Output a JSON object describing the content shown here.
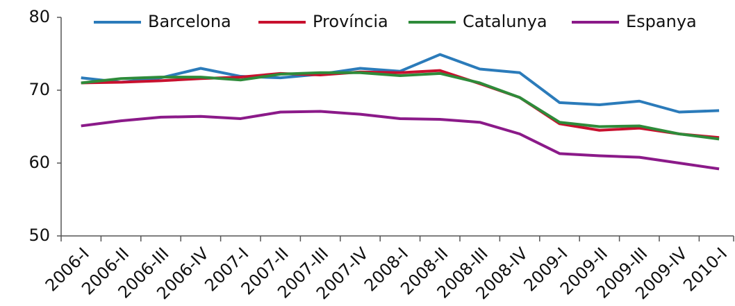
{
  "chart_data": {
    "type": "line",
    "categories": [
      "2006-I",
      "2006-II",
      "2006-III",
      "2006-IV",
      "2007-I",
      "2007-II",
      "2007-III",
      "2007-IV",
      "2008-I",
      "2008-II",
      "2008-III",
      "2008-IV",
      "2009-I",
      "2009-II",
      "2009-III",
      "2009-IV",
      "2010-I"
    ],
    "series": [
      {
        "name": "Barcelona",
        "color": "#2b7bba",
        "values": [
          71.7,
          71.1,
          71.7,
          73.0,
          71.9,
          71.7,
          72.2,
          73.0,
          72.6,
          74.9,
          72.9,
          72.4,
          68.3,
          68.0,
          68.5,
          67.0,
          67.2
        ]
      },
      {
        "name": "Província",
        "color": "#c8102e",
        "values": [
          71.0,
          71.1,
          71.3,
          71.6,
          71.8,
          72.3,
          72.1,
          72.5,
          72.4,
          72.7,
          70.9,
          69.0,
          65.4,
          64.5,
          64.8,
          64.0,
          63.5
        ]
      },
      {
        "name": "Catalunya",
        "color": "#2e8b3a",
        "values": [
          71.0,
          71.6,
          71.8,
          71.8,
          71.4,
          72.2,
          72.4,
          72.4,
          72.0,
          72.3,
          71.0,
          69.0,
          65.6,
          65.0,
          65.1,
          64.0,
          63.3
        ]
      },
      {
        "name": "Espanya",
        "color": "#8b1a89",
        "values": [
          65.1,
          65.8,
          66.3,
          66.4,
          66.1,
          67.0,
          67.1,
          66.7,
          66.1,
          66.0,
          65.6,
          64.0,
          61.3,
          61.0,
          60.8,
          60.0,
          59.2
        ]
      }
    ],
    "ylim": [
      50,
      80
    ],
    "yticks": [
      50,
      60,
      70,
      80
    ],
    "grid": false,
    "legend": "top"
  }
}
